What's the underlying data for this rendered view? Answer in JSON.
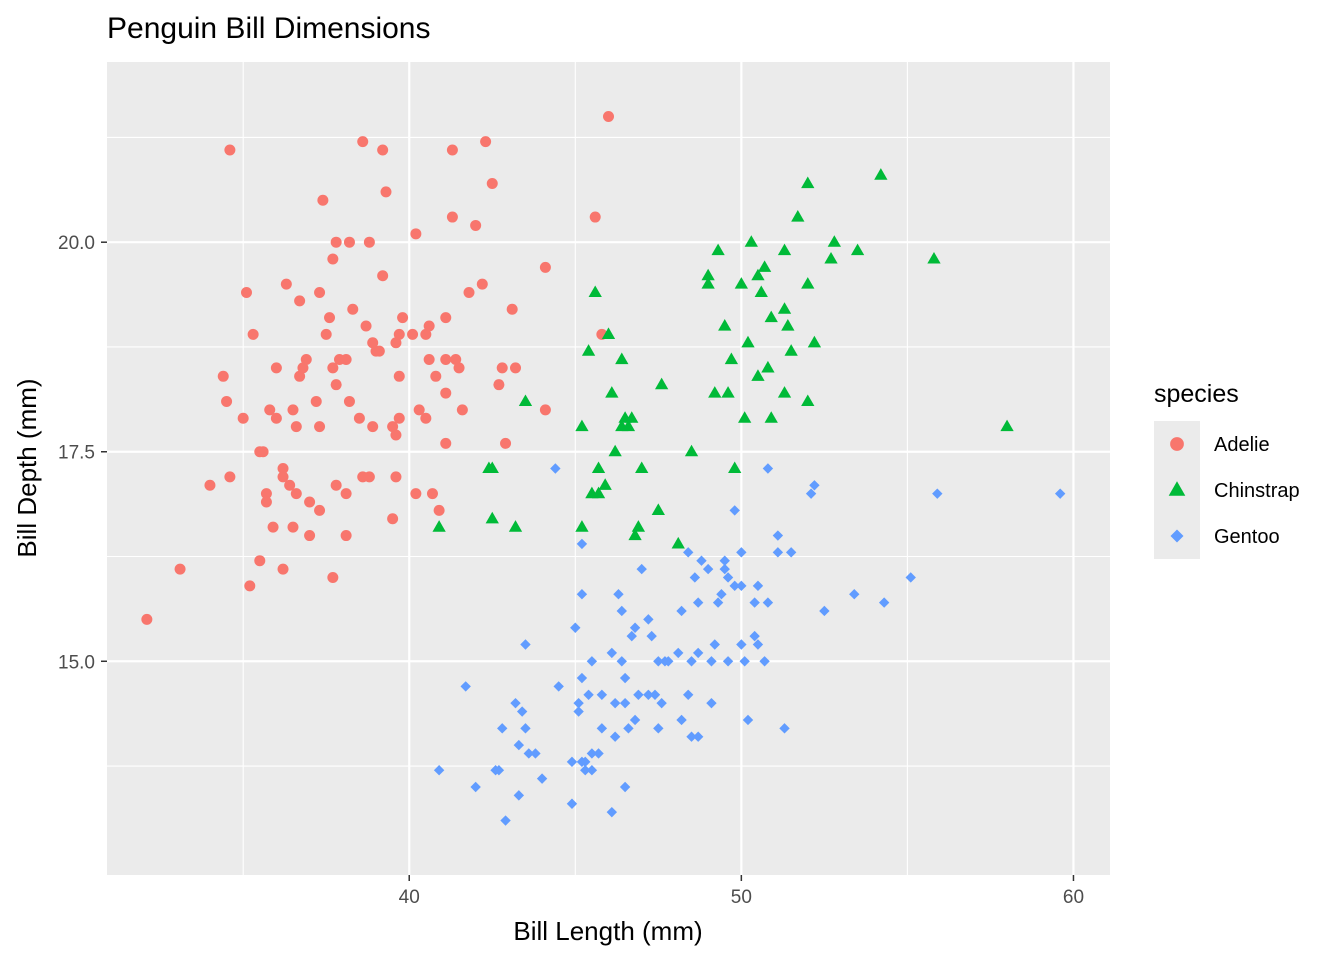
{
  "chart_data": {
    "type": "scatter",
    "title": "Penguin Bill Dimensions",
    "xlabel": "Bill Length (mm)",
    "ylabel": "Bill Depth (mm)",
    "xlim": [
      30.9,
      61.1
    ],
    "ylim": [
      12.45,
      22.15
    ],
    "x_ticks": [
      40,
      50,
      60
    ],
    "x_tick_labels": [
      "40",
      "50",
      "60"
    ],
    "y_ticks": [
      15.0,
      17.5,
      20.0
    ],
    "y_tick_labels": [
      "15.0",
      "17.5",
      "20.0"
    ],
    "grid": true,
    "panel_background": "#ebebeb",
    "legend": {
      "title": "species",
      "placement": "right"
    },
    "series": [
      {
        "name": "Adelie",
        "color": "#F8766D",
        "shape": "circle",
        "points": [
          [
            32.1,
            15.5
          ],
          [
            33.1,
            16.1
          ],
          [
            34.0,
            17.1
          ],
          [
            34.4,
            18.4
          ],
          [
            34.5,
            18.1
          ],
          [
            34.6,
            21.1
          ],
          [
            34.6,
            17.2
          ],
          [
            35.0,
            17.9
          ],
          [
            35.1,
            19.4
          ],
          [
            35.2,
            15.9
          ],
          [
            35.3,
            18.9
          ],
          [
            35.5,
            16.2
          ],
          [
            35.5,
            17.5
          ],
          [
            35.6,
            17.5
          ],
          [
            35.7,
            17.0
          ],
          [
            35.7,
            16.9
          ],
          [
            35.8,
            18.0
          ],
          [
            35.9,
            16.6
          ],
          [
            36.0,
            18.5
          ],
          [
            36.0,
            17.9
          ],
          [
            36.2,
            16.1
          ],
          [
            36.2,
            17.3
          ],
          [
            36.2,
            17.2
          ],
          [
            36.3,
            19.5
          ],
          [
            36.4,
            17.1
          ],
          [
            36.5,
            16.6
          ],
          [
            36.5,
            18.0
          ],
          [
            36.6,
            17.0
          ],
          [
            36.6,
            17.8
          ],
          [
            36.7,
            18.4
          ],
          [
            36.7,
            19.3
          ],
          [
            36.8,
            18.5
          ],
          [
            36.9,
            18.6
          ],
          [
            37.0,
            16.5
          ],
          [
            37.0,
            16.9
          ],
          [
            37.2,
            18.1
          ],
          [
            37.3,
            19.4
          ],
          [
            37.3,
            17.8
          ],
          [
            37.3,
            16.8
          ],
          [
            37.4,
            20.5
          ],
          [
            37.5,
            18.9
          ],
          [
            37.6,
            19.1
          ],
          [
            37.7,
            18.5
          ],
          [
            37.7,
            16.0
          ],
          [
            37.7,
            19.8
          ],
          [
            37.8,
            18.3
          ],
          [
            37.8,
            17.1
          ],
          [
            37.8,
            20.0
          ],
          [
            37.9,
            18.6
          ],
          [
            38.1,
            16.5
          ],
          [
            38.1,
            17.0
          ],
          [
            38.1,
            18.6
          ],
          [
            38.2,
            18.1
          ],
          [
            38.2,
            20.0
          ],
          [
            38.3,
            19.2
          ],
          [
            38.5,
            17.9
          ],
          [
            38.6,
            21.2
          ],
          [
            38.6,
            17.2
          ],
          [
            38.7,
            19.0
          ],
          [
            38.8,
            17.2
          ],
          [
            38.8,
            20.0
          ],
          [
            38.9,
            18.8
          ],
          [
            38.9,
            17.8
          ],
          [
            39.0,
            18.7
          ],
          [
            39.1,
            18.7
          ],
          [
            39.2,
            21.1
          ],
          [
            39.2,
            19.6
          ],
          [
            39.3,
            20.6
          ],
          [
            39.5,
            16.7
          ],
          [
            39.5,
            17.8
          ],
          [
            39.6,
            18.8
          ],
          [
            39.6,
            17.7
          ],
          [
            39.6,
            17.2
          ],
          [
            39.7,
            17.9
          ],
          [
            39.7,
            18.4
          ],
          [
            39.7,
            18.9
          ],
          [
            39.8,
            19.1
          ],
          [
            40.1,
            18.9
          ],
          [
            40.2,
            20.1
          ],
          [
            40.2,
            17.0
          ],
          [
            40.3,
            18.0
          ],
          [
            40.5,
            17.9
          ],
          [
            40.5,
            18.9
          ],
          [
            40.6,
            18.6
          ],
          [
            40.6,
            19.0
          ],
          [
            40.7,
            17.0
          ],
          [
            40.8,
            18.4
          ],
          [
            40.9,
            16.8
          ],
          [
            41.1,
            19.1
          ],
          [
            41.1,
            18.6
          ],
          [
            41.1,
            17.6
          ],
          [
            41.1,
            18.2
          ],
          [
            41.3,
            21.1
          ],
          [
            41.3,
            20.3
          ],
          [
            41.4,
            18.6
          ],
          [
            41.5,
            18.5
          ],
          [
            41.6,
            18.0
          ],
          [
            41.8,
            19.4
          ],
          [
            42.0,
            20.2
          ],
          [
            42.2,
            19.5
          ],
          [
            42.3,
            21.2
          ],
          [
            42.5,
            20.7
          ],
          [
            42.7,
            18.3
          ],
          [
            42.8,
            18.5
          ],
          [
            42.9,
            17.6
          ],
          [
            43.1,
            19.2
          ],
          [
            43.2,
            18.5
          ],
          [
            44.1,
            19.7
          ],
          [
            44.1,
            18.0
          ],
          [
            45.6,
            20.3
          ],
          [
            45.8,
            18.9
          ],
          [
            46.0,
            21.5
          ]
        ]
      },
      {
        "name": "Chinstrap",
        "color": "#00BA38",
        "shape": "triangle",
        "points": [
          [
            40.9,
            16.6
          ],
          [
            42.4,
            17.3
          ],
          [
            42.5,
            16.7
          ],
          [
            42.5,
            17.3
          ],
          [
            43.2,
            16.6
          ],
          [
            43.5,
            18.1
          ],
          [
            45.2,
            17.8
          ],
          [
            45.2,
            16.6
          ],
          [
            45.4,
            18.7
          ],
          [
            45.5,
            17.0
          ],
          [
            45.6,
            19.4
          ],
          [
            45.7,
            17.3
          ],
          [
            45.7,
            17.0
          ],
          [
            45.9,
            17.1
          ],
          [
            46.0,
            18.9
          ],
          [
            46.1,
            18.2
          ],
          [
            46.2,
            17.5
          ],
          [
            46.4,
            18.6
          ],
          [
            46.4,
            17.8
          ],
          [
            46.5,
            17.9
          ],
          [
            46.6,
            17.8
          ],
          [
            46.7,
            17.9
          ],
          [
            46.8,
            16.5
          ],
          [
            46.9,
            16.6
          ],
          [
            47.0,
            17.3
          ],
          [
            47.5,
            16.8
          ],
          [
            47.6,
            18.3
          ],
          [
            48.1,
            16.4
          ],
          [
            48.5,
            17.5
          ],
          [
            49.0,
            19.5
          ],
          [
            49.0,
            19.6
          ],
          [
            49.2,
            18.2
          ],
          [
            49.3,
            19.9
          ],
          [
            49.5,
            19.0
          ],
          [
            49.6,
            18.2
          ],
          [
            49.7,
            18.6
          ],
          [
            49.8,
            17.3
          ],
          [
            50.0,
            19.5
          ],
          [
            50.1,
            17.9
          ],
          [
            50.2,
            18.8
          ],
          [
            50.3,
            20.0
          ],
          [
            50.5,
            18.4
          ],
          [
            50.5,
            19.6
          ],
          [
            50.6,
            19.4
          ],
          [
            50.7,
            19.7
          ],
          [
            50.8,
            18.5
          ],
          [
            50.9,
            17.9
          ],
          [
            50.9,
            19.1
          ],
          [
            51.3,
            19.9
          ],
          [
            51.3,
            18.2
          ],
          [
            51.3,
            19.2
          ],
          [
            51.4,
            19.0
          ],
          [
            51.5,
            18.7
          ],
          [
            51.7,
            20.3
          ],
          [
            52.0,
            19.5
          ],
          [
            52.0,
            20.7
          ],
          [
            52.0,
            18.1
          ],
          [
            52.2,
            18.8
          ],
          [
            52.7,
            19.8
          ],
          [
            52.8,
            20.0
          ],
          [
            53.5,
            19.9
          ],
          [
            54.2,
            20.8
          ],
          [
            55.8,
            19.8
          ],
          [
            58.0,
            17.8
          ]
        ]
      },
      {
        "name": "Gentoo",
        "color": "#619CFF",
        "shape": "diamond",
        "points": [
          [
            40.9,
            13.7
          ],
          [
            41.7,
            14.7
          ],
          [
            42.0,
            13.5
          ],
          [
            42.6,
            13.7
          ],
          [
            42.7,
            13.7
          ],
          [
            42.8,
            14.2
          ],
          [
            42.9,
            13.1
          ],
          [
            43.2,
            14.5
          ],
          [
            43.3,
            13.4
          ],
          [
            43.3,
            14.0
          ],
          [
            43.4,
            14.4
          ],
          [
            43.5,
            14.2
          ],
          [
            43.5,
            15.2
          ],
          [
            43.6,
            13.9
          ],
          [
            43.8,
            13.9
          ],
          [
            44.0,
            13.6
          ],
          [
            44.4,
            17.3
          ],
          [
            44.5,
            14.7
          ],
          [
            44.9,
            13.8
          ],
          [
            44.9,
            13.3
          ],
          [
            45.0,
            15.4
          ],
          [
            45.1,
            14.5
          ],
          [
            45.1,
            14.4
          ],
          [
            45.2,
            13.8
          ],
          [
            45.2,
            14.8
          ],
          [
            45.2,
            16.4
          ],
          [
            45.2,
            15.8
          ],
          [
            45.3,
            13.8
          ],
          [
            45.3,
            13.7
          ],
          [
            45.4,
            14.6
          ],
          [
            45.5,
            13.7
          ],
          [
            45.5,
            13.9
          ],
          [
            45.5,
            15.0
          ],
          [
            45.7,
            13.9
          ],
          [
            45.8,
            14.6
          ],
          [
            45.8,
            14.2
          ],
          [
            46.1,
            13.2
          ],
          [
            46.1,
            15.1
          ],
          [
            46.2,
            14.5
          ],
          [
            46.2,
            14.1
          ],
          [
            46.3,
            15.8
          ],
          [
            46.4,
            15.0
          ],
          [
            46.4,
            15.6
          ],
          [
            46.5,
            14.5
          ],
          [
            46.5,
            13.5
          ],
          [
            46.5,
            14.8
          ],
          [
            46.6,
            14.2
          ],
          [
            46.7,
            15.3
          ],
          [
            46.8,
            14.3
          ],
          [
            46.8,
            15.4
          ],
          [
            46.9,
            14.6
          ],
          [
            47.0,
            16.1
          ],
          [
            47.2,
            15.5
          ],
          [
            47.2,
            14.6
          ],
          [
            47.3,
            15.3
          ],
          [
            47.4,
            14.6
          ],
          [
            47.5,
            14.2
          ],
          [
            47.5,
            15.0
          ],
          [
            47.6,
            14.5
          ],
          [
            47.7,
            15.0
          ],
          [
            47.8,
            15.0
          ],
          [
            48.1,
            15.1
          ],
          [
            48.2,
            14.3
          ],
          [
            48.2,
            15.6
          ],
          [
            48.4,
            14.6
          ],
          [
            48.4,
            16.3
          ],
          [
            48.5,
            14.1
          ],
          [
            48.5,
            15.0
          ],
          [
            48.6,
            16.0
          ],
          [
            48.7,
            14.1
          ],
          [
            48.7,
            15.1
          ],
          [
            48.7,
            15.7
          ],
          [
            48.8,
            16.2
          ],
          [
            49.0,
            16.1
          ],
          [
            49.1,
            14.5
          ],
          [
            49.1,
            15.0
          ],
          [
            49.2,
            15.2
          ],
          [
            49.3,
            15.7
          ],
          [
            49.4,
            15.8
          ],
          [
            49.5,
            16.1
          ],
          [
            49.5,
            16.2
          ],
          [
            49.6,
            15.0
          ],
          [
            49.6,
            16.0
          ],
          [
            49.8,
            15.9
          ],
          [
            49.8,
            16.8
          ],
          [
            50.0,
            15.2
          ],
          [
            50.0,
            15.9
          ],
          [
            50.0,
            16.3
          ],
          [
            50.1,
            15.0
          ],
          [
            50.2,
            14.3
          ],
          [
            50.4,
            15.3
          ],
          [
            50.4,
            15.7
          ],
          [
            50.5,
            15.2
          ],
          [
            50.5,
            15.9
          ],
          [
            50.7,
            15.0
          ],
          [
            50.8,
            15.7
          ],
          [
            50.8,
            17.3
          ],
          [
            51.1,
            16.3
          ],
          [
            51.1,
            16.5
          ],
          [
            51.3,
            14.2
          ],
          [
            51.5,
            16.3
          ],
          [
            52.1,
            17.0
          ],
          [
            52.2,
            17.1
          ],
          [
            52.5,
            15.6
          ],
          [
            53.4,
            15.8
          ],
          [
            54.3,
            15.7
          ],
          [
            55.1,
            16.0
          ],
          [
            55.9,
            17.0
          ],
          [
            59.6,
            17.0
          ]
        ]
      }
    ]
  }
}
